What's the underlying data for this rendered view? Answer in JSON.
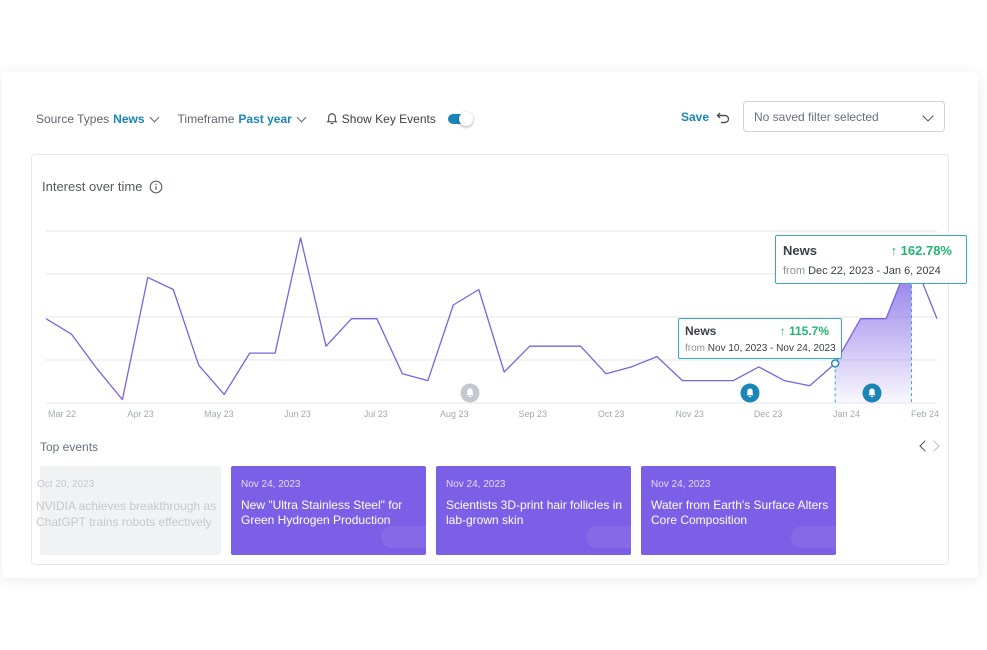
{
  "toolbar": {
    "source_types_label": "Source Types",
    "source_types_value": "News",
    "timeframe_label": "Timeframe",
    "timeframe_value": "Past year",
    "key_events_label": "Show Key Events",
    "key_events_enabled": true,
    "save_label": "Save",
    "saved_filter_placeholder": "No saved filter selected"
  },
  "panel": {
    "title": "Interest over time"
  },
  "colors": {
    "accent": "#1a86b8",
    "series": "#7b63e0",
    "positive": "#22b573",
    "event_card": "#7b5fe6",
    "highlight_border": "#35a7c4"
  },
  "chart_data": {
    "type": "line",
    "x_tick_labels": [
      "Mar 22",
      "Apr 23",
      "May 23",
      "Jun 23",
      "Jul 23",
      "Aug 23",
      "Sep 23",
      "Oct 23",
      "Nov 23",
      "Dec 23",
      "Jan 24",
      "Feb 24"
    ],
    "y_range": [
      0,
      100
    ],
    "grid": "horizontal",
    "series": [
      {
        "values": [
          49,
          40,
          20,
          2,
          73,
          66,
          22,
          5,
          29,
          29,
          96,
          33,
          49,
          49,
          17,
          13,
          57,
          66,
          18,
          33,
          33,
          33,
          17,
          21,
          27,
          13,
          13,
          13,
          21,
          13,
          10,
          23,
          49,
          49,
          86,
          49
        ]
      }
    ],
    "key_event_markers": [
      {
        "near": "Aug 23",
        "active": false,
        "icon": "bell-icon"
      },
      {
        "near": "Dec 23",
        "active": true,
        "icon": "bell-icon"
      },
      {
        "near": "Jan 24",
        "active": true,
        "icon": "bell-icon"
      }
    ],
    "highlights": [
      {
        "series": "News",
        "change": "↑ 115.7%",
        "from_label": "from",
        "range": "Nov 10, 2023 - Nov 24, 2023"
      },
      {
        "series": "News",
        "change": "↑ 162.78%",
        "from_label": "from",
        "range": "Dec 22, 2023 - Jan 6, 2024"
      }
    ]
  },
  "top_events": {
    "title": "Top events",
    "items": [
      {
        "date": "Oct 20, 2023",
        "title": "NVIDIA achieves breakthrough as ChatGPT trains robots effectively",
        "faded": true
      },
      {
        "date": "Nov 24, 2023",
        "title": "New \"Ultra Stainless Steel\" for Green Hydrogen Production",
        "faded": false
      },
      {
        "date": "Nov 24, 2023",
        "title": "Scientists 3D-print hair follicles in lab-grown skin",
        "faded": false
      },
      {
        "date": "Nov 24, 2023",
        "title": "Water from Earth's Surface Alters Core Composition",
        "faded": false
      }
    ]
  }
}
